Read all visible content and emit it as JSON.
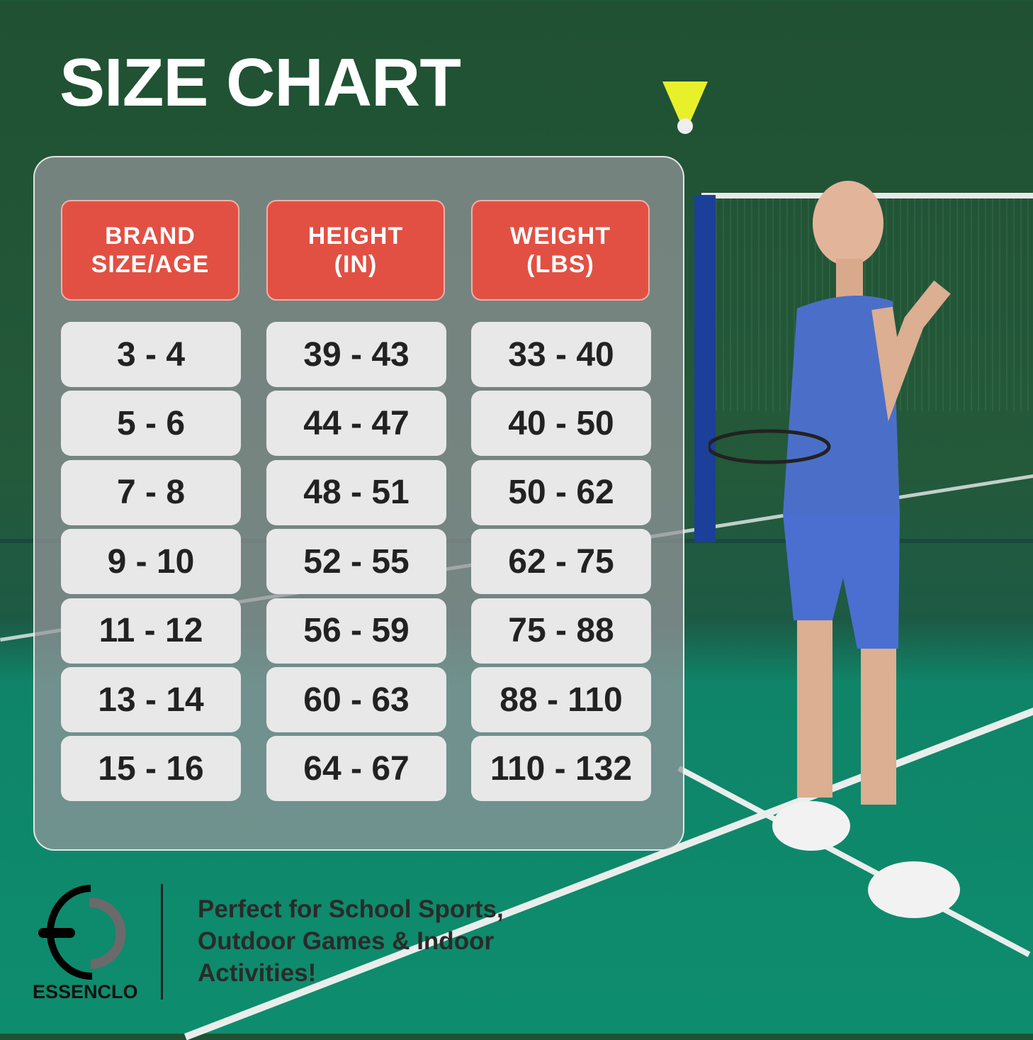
{
  "title": "SIZE CHART",
  "headers": [
    "BRAND\nSIZE/AGE",
    "HEIGHT\n(IN)",
    "WEIGHT\n(LBS)"
  ],
  "rows": [
    [
      "3 - 4",
      "39 - 43",
      "33 - 40"
    ],
    [
      "5 - 6",
      "44 - 47",
      "40 - 50"
    ],
    [
      "7 - 8",
      "48 - 51",
      "50 - 62"
    ],
    [
      "9 - 10",
      "52 - 55",
      "62 - 75"
    ],
    [
      "11 - 12",
      "56 - 59",
      "75 - 88"
    ],
    [
      "13 - 14",
      "60 - 63",
      "88 - 110"
    ],
    [
      "15 - 16",
      "64 - 67",
      "110 - 132"
    ]
  ],
  "brand": {
    "name": "ESSENCLO"
  },
  "tagline": "Perfect for School Sports,\nOutdoor Games & Indoor\nActivities!",
  "colors": {
    "header": "#e25043",
    "cell": "#e8e8e8",
    "wall": "#1f5132",
    "court": "#0e8d6e"
  }
}
